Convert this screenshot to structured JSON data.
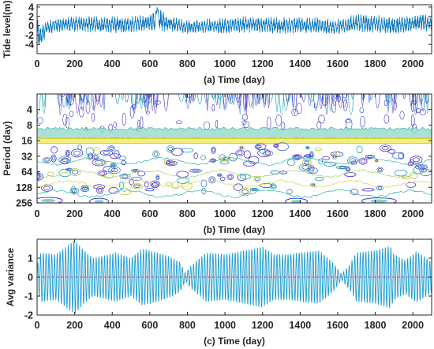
{
  "chart_data": [
    {
      "id": "a",
      "type": "line",
      "xlabel": "(a) Time (day)",
      "ylabel": "Tide level(m)",
      "xlim": [
        0,
        2100
      ],
      "ylim": [
        -6,
        4.5
      ],
      "x_ticks": [
        0,
        200,
        400,
        600,
        800,
        1000,
        1200,
        1400,
        1600,
        1800,
        2000
      ],
      "y_ticks": [
        4,
        2,
        0,
        -2,
        -4
      ],
      "line_color": "#0072bd",
      "envelope": {
        "x": [
          0,
          15,
          50,
          100,
          200,
          300,
          400,
          500,
          600,
          640,
          700,
          800,
          900,
          1000,
          1100,
          1200,
          1300,
          1400,
          1500,
          1600,
          1700,
          1800,
          1900,
          2000,
          2050,
          2100
        ],
        "upper": [
          1.5,
          0.5,
          1.0,
          1.8,
          2.2,
          2.0,
          2.0,
          2.0,
          2.5,
          4.2,
          2.0,
          1.2,
          1.5,
          1.6,
          2.0,
          2.0,
          1.8,
          2.0,
          1.8,
          1.5,
          2.5,
          2.3,
          2.0,
          2.2,
          3.0,
          1.8
        ],
        "lower": [
          -4.0,
          -5.5,
          -1.8,
          -1.5,
          -1.3,
          -1.5,
          -1.6,
          -1.5,
          -1.2,
          -1.5,
          -1.2,
          -2.0,
          -1.5,
          -1.7,
          -1.5,
          -1.5,
          -1.8,
          -1.6,
          -1.8,
          -2.0,
          -1.5,
          -1.5,
          -1.8,
          -1.5,
          -1.0,
          -1.5
        ]
      }
    },
    {
      "id": "b",
      "type": "heatmap",
      "xlabel": "(b) Time (day)",
      "ylabel": "Period (day)",
      "xlim": [
        0,
        2100
      ],
      "y_scale": "log2",
      "ylim": [
        2,
        256
      ],
      "y_reversed": true,
      "x_ticks": [
        0,
        200,
        400,
        600,
        800,
        1000,
        1200,
        1400,
        1600,
        1800,
        2000
      ],
      "y_ticks": [
        4,
        8,
        16,
        32,
        64,
        128,
        256
      ],
      "bands": [
        {
          "period_from": 2,
          "period_to": 10,
          "level": "high",
          "color": "#3f3fc8"
        },
        {
          "period_from": 10,
          "period_to": 14,
          "level": "medium",
          "color": "#2fb09b"
        },
        {
          "period_from": 14,
          "period_to": 18,
          "level": "peak",
          "color": "#e8e24a"
        },
        {
          "period_from": 18,
          "period_to": 200,
          "level": "medium",
          "color": "#4d5fd6"
        },
        {
          "period_from": 200,
          "period_to": 256,
          "level": "low",
          "color": "#27b6a3"
        }
      ]
    },
    {
      "id": "c",
      "type": "line",
      "xlabel": "(c) Time (day)",
      "ylabel": "Avg variance",
      "xlim": [
        0,
        2100
      ],
      "ylim": [
        -2,
        2
      ],
      "x_ticks": [
        0,
        200,
        400,
        600,
        800,
        1000,
        1200,
        1400,
        1600,
        1800,
        2000
      ],
      "y_ticks": [
        1,
        0,
        -1,
        -2
      ],
      "line_color": "#1f9ed1",
      "zero_line_color": "#d9534f",
      "oscillation_period_days": 14.8,
      "amplitude": {
        "x": [
          0,
          20,
          100,
          200,
          260,
          300,
          420,
          500,
          560,
          640,
          700,
          760,
          790,
          820,
          900,
          1000,
          1100,
          1200,
          1260,
          1340,
          1400,
          1500,
          1550,
          1580,
          1620,
          1660,
          1700,
          1800,
          1880,
          1900,
          1960,
          2020,
          2060,
          2100
        ],
        "values": [
          0.6,
          1.3,
          1.2,
          1.95,
          1.3,
          1.0,
          1.3,
          1.0,
          1.5,
          1.3,
          1.1,
          0.8,
          0.2,
          0.6,
          1.3,
          1.2,
          1.4,
          1.6,
          1.2,
          1.2,
          1.3,
          1.4,
          1.0,
          0.7,
          0.15,
          0.6,
          1.3,
          1.4,
          1.65,
          1.2,
          0.9,
          1.35,
          1.1,
          0.8
        ]
      }
    }
  ]
}
